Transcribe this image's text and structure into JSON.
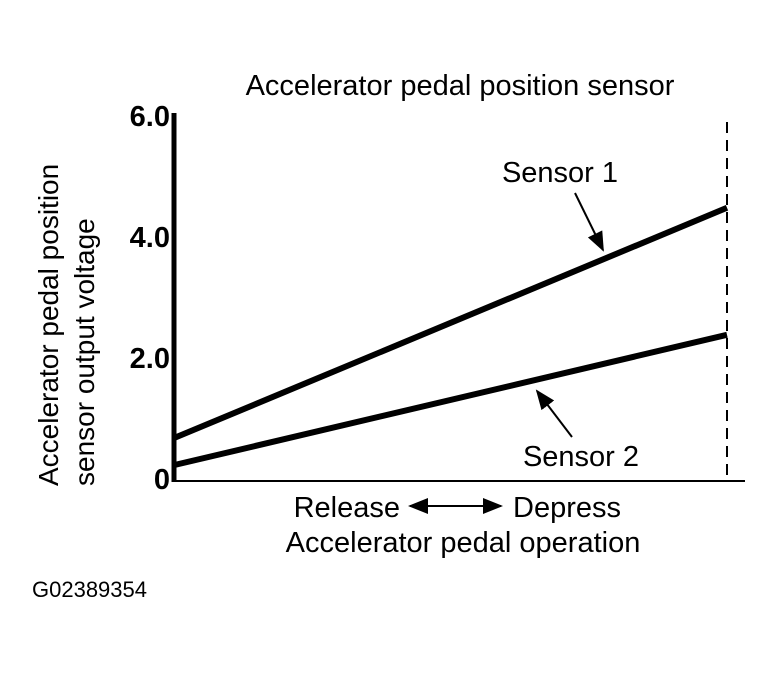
{
  "figure_id": "G02389354",
  "colors": {
    "ink": "#000000",
    "background": "#ffffff"
  },
  "chart_data": {
    "type": "line",
    "title": "Accelerator pedal position sensor",
    "ylabel": "Accelerator pedal position sensor output voltage",
    "ylabel_lines": [
      "Accelerator pedal position",
      "sensor output voltage"
    ],
    "xlabel": "Accelerator pedal operation",
    "x_axis_annotation": {
      "left": "Release",
      "right": "Depress",
      "arrow": "double-headed-horizontal"
    },
    "ylim": [
      0,
      6.0
    ],
    "yticks": [
      {
        "label": "0",
        "value": 0
      },
      {
        "label": "2.0",
        "value": 2
      },
      {
        "label": "4.0",
        "value": 4
      },
      {
        "label": "6.0",
        "value": 6
      }
    ],
    "grid": false,
    "legend": "inline-annotations",
    "x_range": [
      0,
      1
    ],
    "full_depress_marker": {
      "style": "dashed-vertical-line",
      "x": 1
    },
    "series": [
      {
        "name": "Sensor 1",
        "x": [
          0,
          1
        ],
        "values": [
          0.7,
          4.5
        ]
      },
      {
        "name": "Sensor 2",
        "x": [
          0,
          1
        ],
        "values": [
          0.25,
          2.4
        ]
      }
    ]
  }
}
